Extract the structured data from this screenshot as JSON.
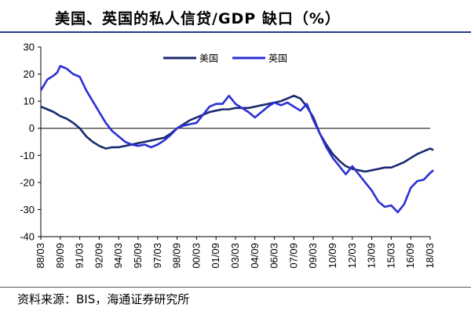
{
  "header": {
    "title": "美国、英国的私人信贷/GDP 缺口（%）"
  },
  "footer": {
    "source": "资料来源：BIS，海通证券研究所"
  },
  "colors": {
    "us": "#1a2a6c",
    "uk": "#2b2fd6",
    "title_rule": "#1f3a8a"
  },
  "chart_data": {
    "type": "line",
    "title": "美国、英国的私人信贷/GDP 缺口（%）",
    "xlabel": "",
    "ylabel": "",
    "ylim": [
      -40,
      30
    ],
    "yticks": [
      "30",
      "20",
      "10",
      "0",
      "-10",
      "-20",
      "-30",
      "-40"
    ],
    "xticks": [
      "88/03",
      "89/09",
      "91/03",
      "92/09",
      "94/03",
      "95/09",
      "97/03",
      "98/09",
      "00/03",
      "01/09",
      "03/03",
      "04/09",
      "06/03",
      "07/09",
      "09/03",
      "10/09",
      "12/03",
      "13/09",
      "15/03",
      "16/09",
      "18/03"
    ],
    "grid": false,
    "legend": "top-center",
    "series": [
      {
        "name": "美国",
        "color": "#1a2a6c",
        "points": [
          [
            "88/03",
            8
          ],
          [
            "88/09",
            7
          ],
          [
            "89/03",
            6
          ],
          [
            "89/09",
            4.5
          ],
          [
            "90/03",
            3.5
          ],
          [
            "90/09",
            2
          ],
          [
            "91/03",
            0
          ],
          [
            "91/09",
            -3
          ],
          [
            "92/03",
            -5
          ],
          [
            "92/09",
            -6.5
          ],
          [
            "93/03",
            -7.5
          ],
          [
            "93/09",
            -7
          ],
          [
            "94/03",
            -7
          ],
          [
            "94/09",
            -6.5
          ],
          [
            "95/03",
            -6
          ],
          [
            "95/09",
            -5.5
          ],
          [
            "96/03",
            -5
          ],
          [
            "96/09",
            -4.5
          ],
          [
            "97/03",
            -4
          ],
          [
            "97/09",
            -3.5
          ],
          [
            "98/03",
            -2
          ],
          [
            "98/09",
            0
          ],
          [
            "99/03",
            1.5
          ],
          [
            "99/09",
            3
          ],
          [
            "00/03",
            4
          ],
          [
            "00/09",
            5
          ],
          [
            "01/03",
            6
          ],
          [
            "01/09",
            6.5
          ],
          [
            "02/03",
            7
          ],
          [
            "02/09",
            7
          ],
          [
            "03/03",
            7.5
          ],
          [
            "03/09",
            7.5
          ],
          [
            "04/03",
            7.5
          ],
          [
            "04/09",
            8
          ],
          [
            "05/03",
            8.5
          ],
          [
            "05/09",
            9
          ],
          [
            "06/03",
            9.5
          ],
          [
            "06/09",
            10
          ],
          [
            "07/03",
            11
          ],
          [
            "07/09",
            12
          ],
          [
            "08/03",
            11
          ],
          [
            "08/09",
            8
          ],
          [
            "09/03",
            4
          ],
          [
            "09/09",
            -2
          ],
          [
            "10/03",
            -6
          ],
          [
            "10/09",
            -9.5
          ],
          [
            "11/03",
            -12
          ],
          [
            "11/09",
            -14
          ],
          [
            "12/03",
            -15
          ],
          [
            "12/09",
            -15.5
          ],
          [
            "13/03",
            -16
          ],
          [
            "13/09",
            -15.5
          ],
          [
            "14/03",
            -15
          ],
          [
            "14/09",
            -14.5
          ],
          [
            "15/03",
            -14.5
          ],
          [
            "15/09",
            -13.5
          ],
          [
            "16/03",
            -12.5
          ],
          [
            "16/09",
            -11
          ],
          [
            "17/03",
            -9.5
          ],
          [
            "17/09",
            -8.5
          ],
          [
            "18/03",
            -7.5
          ],
          [
            "18/06",
            -8
          ]
        ]
      },
      {
        "name": "英国",
        "color": "#2b2fd6",
        "points": [
          [
            "88/03",
            14
          ],
          [
            "88/09",
            18
          ],
          [
            "89/03",
            19.5
          ],
          [
            "89/06",
            20.5
          ],
          [
            "89/09",
            23
          ],
          [
            "90/03",
            22
          ],
          [
            "90/09",
            20
          ],
          [
            "91/03",
            19
          ],
          [
            "91/09",
            14
          ],
          [
            "92/03",
            10
          ],
          [
            "92/09",
            6
          ],
          [
            "93/03",
            2
          ],
          [
            "93/09",
            -1
          ],
          [
            "94/03",
            -3
          ],
          [
            "94/09",
            -5
          ],
          [
            "95/03",
            -6
          ],
          [
            "95/09",
            -6.5
          ],
          [
            "96/03",
            -6
          ],
          [
            "96/09",
            -7
          ],
          [
            "97/03",
            -6
          ],
          [
            "97/09",
            -4.5
          ],
          [
            "98/03",
            -2.5
          ],
          [
            "98/09",
            0
          ],
          [
            "99/03",
            1
          ],
          [
            "99/09",
            1.5
          ],
          [
            "00/03",
            2
          ],
          [
            "00/09",
            5
          ],
          [
            "01/03",
            8
          ],
          [
            "01/09",
            9
          ],
          [
            "02/03",
            9
          ],
          [
            "02/09",
            12
          ],
          [
            "03/03",
            9
          ],
          [
            "03/09",
            7.5
          ],
          [
            "04/03",
            6
          ],
          [
            "04/09",
            4
          ],
          [
            "05/03",
            6
          ],
          [
            "05/09",
            8
          ],
          [
            "06/03",
            9.5
          ],
          [
            "06/09",
            8.5
          ],
          [
            "07/03",
            9.5
          ],
          [
            "07/09",
            8
          ],
          [
            "08/03",
            6.5
          ],
          [
            "08/09",
            9
          ],
          [
            "09/03",
            3
          ],
          [
            "09/09",
            -2
          ],
          [
            "10/03",
            -7
          ],
          [
            "10/09",
            -11
          ],
          [
            "11/03",
            -14
          ],
          [
            "11/09",
            -17
          ],
          [
            "12/03",
            -14
          ],
          [
            "12/09",
            -17
          ],
          [
            "13/03",
            -20
          ],
          [
            "13/09",
            -23
          ],
          [
            "14/03",
            -27
          ],
          [
            "14/09",
            -29
          ],
          [
            "15/03",
            -28.5
          ],
          [
            "15/09",
            -31
          ],
          [
            "16/03",
            -28
          ],
          [
            "16/09",
            -22
          ],
          [
            "17/03",
            -19.5
          ],
          [
            "17/09",
            -19
          ],
          [
            "18/03",
            -16.5
          ],
          [
            "18/06",
            -15.5
          ]
        ]
      }
    ]
  }
}
